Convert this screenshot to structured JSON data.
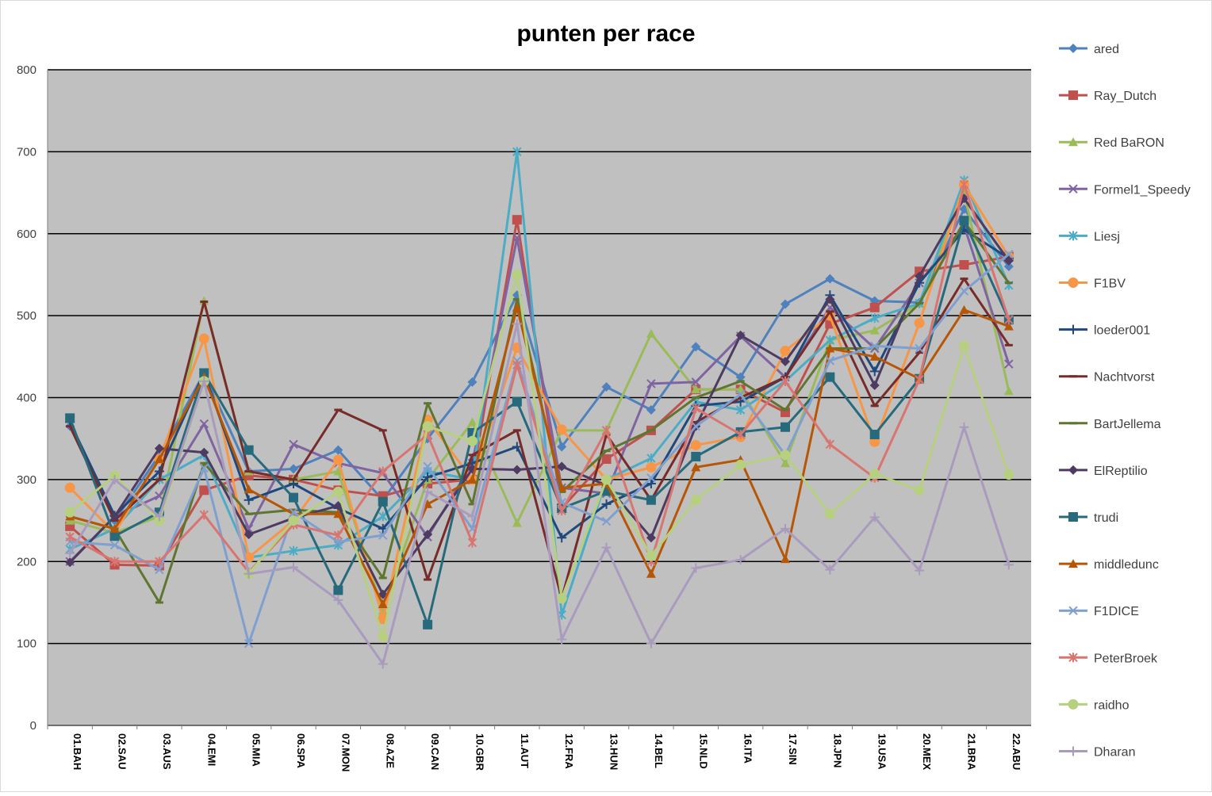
{
  "chart_data": {
    "type": "line",
    "title": "punten per race",
    "xlabel": "",
    "ylabel": "",
    "ylim": [
      0,
      800
    ],
    "yticks": [
      0,
      100,
      200,
      300,
      400,
      500,
      600,
      700,
      800
    ],
    "grid": true,
    "legend_position": "right",
    "plot_background": "#c0c0c0",
    "categories": [
      "01.BAH",
      "02.SAU",
      "03.AUS",
      "04.EMI",
      "05.MIA",
      "06.SPA",
      "07.MON",
      "08.AZE",
      "09.CAN",
      "10.GBR",
      "11.AUT",
      "12.FRA",
      "13.HUN",
      "14.BEL",
      "15.NLD",
      "16.ITA",
      "17.SIN",
      "18.JPN",
      "19.USA",
      "20.MEX",
      "21.BRA",
      "22.ABU"
    ],
    "series": [
      {
        "name": "ared",
        "color": "#4f81bd",
        "marker": "diamond",
        "values": [
          365,
          250,
          330,
          430,
          310,
          313,
          336,
          275,
          350,
          419,
          525,
          340,
          413,
          385,
          462,
          425,
          514,
          545,
          518,
          516,
          630,
          560
        ]
      },
      {
        "name": "Ray_Dutch",
        "color": "#c0504d",
        "marker": "square",
        "values": [
          243,
          196,
          195,
          287,
          305,
          300,
          287,
          280,
          295,
          300,
          617,
          265,
          325,
          360,
          410,
          410,
          382,
          490,
          510,
          554,
          562,
          572
        ]
      },
      {
        "name": "Red BaRON",
        "color": "#9bbb59",
        "marker": "triangle",
        "values": [
          250,
          235,
          255,
          518,
          310,
          300,
          310,
          140,
          300,
          370,
          247,
          360,
          360,
          478,
          410,
          410,
          320,
          470,
          482,
          515,
          650,
          408
        ]
      },
      {
        "name": "Formel1_Speedy",
        "color": "#8064a2",
        "marker": "x",
        "values": [
          200,
          255,
          280,
          368,
          240,
          343,
          320,
          308,
          230,
          320,
          595,
          290,
          283,
          417,
          419,
          475,
          425,
          510,
          460,
          540,
          610,
          441
        ]
      },
      {
        "name": "Liesj",
        "color": "#4bacc6",
        "marker": "star",
        "values": [
          215,
          240,
          300,
          330,
          205,
          213,
          220,
          255,
          310,
          300,
          700,
          135,
          300,
          326,
          395,
          385,
          420,
          470,
          497,
          515,
          665,
          537
        ]
      },
      {
        "name": "F1BV",
        "color": "#f79646",
        "marker": "circle",
        "values": [
          290,
          235,
          325,
          472,
          205,
          250,
          324,
          130,
          373,
          300,
          461,
          361,
          300,
          315,
          342,
          352,
          457,
          500,
          346,
          491,
          660,
          572
        ]
      },
      {
        "name": "loeder001",
        "color": "#1f497d",
        "marker": "plus",
        "values": [
          370,
          256,
          310,
          430,
          275,
          295,
          265,
          240,
          303,
          320,
          340,
          229,
          270,
          295,
          390,
          395,
          425,
          525,
          432,
          540,
          605,
          570
        ]
      },
      {
        "name": "Nachtvorst",
        "color": "#772c2a",
        "marker": "dash",
        "values": [
          365,
          250,
          300,
          517,
          310,
          300,
          385,
          360,
          178,
          330,
          360,
          155,
          355,
          275,
          370,
          400,
          425,
          505,
          390,
          455,
          545,
          464
        ]
      },
      {
        "name": "BartJellema",
        "color": "#5f7530",
        "marker": "dash",
        "values": [
          255,
          240,
          150,
          320,
          258,
          263,
          260,
          180,
          393,
          270,
          520,
          285,
          335,
          360,
          400,
          420,
          385,
          460,
          460,
          515,
          615,
          540
        ]
      },
      {
        "name": "ElReptilio",
        "color": "#4d3b62",
        "marker": "diamond",
        "values": [
          199,
          255,
          338,
          333,
          233,
          253,
          268,
          160,
          233,
          313,
          312,
          316,
          293,
          229,
          365,
          476,
          444,
          520,
          415,
          548,
          643,
          567
        ]
      },
      {
        "name": "trudi",
        "color": "#276a7c",
        "marker": "square",
        "values": [
          375,
          231,
          260,
          430,
          336,
          278,
          165,
          273,
          123,
          357,
          395,
          265,
          286,
          275,
          328,
          358,
          364,
          425,
          355,
          423,
          616,
          495
        ]
      },
      {
        "name": "middledunc",
        "color": "#b65708",
        "marker": "triangle",
        "values": [
          255,
          240,
          325,
          425,
          288,
          258,
          258,
          148,
          270,
          300,
          510,
          290,
          295,
          185,
          315,
          324,
          203,
          460,
          450,
          423,
          507,
          487
        ]
      },
      {
        "name": "F1DICE",
        "color": "#7f9fcf",
        "marker": "x",
        "values": [
          224,
          220,
          190,
          314,
          100,
          260,
          224,
          232,
          316,
          240,
          445,
          272,
          249,
          302,
          365,
          404,
          330,
          445,
          463,
          460,
          530,
          575
        ]
      },
      {
        "name": "PeterBroek",
        "color": "#d97571",
        "marker": "star",
        "values": [
          230,
          200,
          200,
          257,
          187,
          245,
          232,
          310,
          355,
          223,
          440,
          262,
          360,
          200,
          387,
          355,
          420,
          343,
          302,
          422,
          660,
          495
        ]
      },
      {
        "name": "raidho",
        "color": "#b6d080",
        "marker": "circle",
        "values": [
          260,
          305,
          250,
          420,
          185,
          250,
          285,
          108,
          365,
          347,
          550,
          155,
          300,
          207,
          275,
          318,
          330,
          258,
          307,
          287,
          463,
          306
        ]
      },
      {
        "name": "Dharan",
        "color": "#a99bbd",
        "marker": "plus",
        "values": [
          210,
          300,
          255,
          420,
          185,
          193,
          153,
          75,
          285,
          255,
          490,
          105,
          217,
          100,
          192,
          202,
          240,
          190,
          254,
          189,
          364,
          196
        ]
      }
    ]
  }
}
